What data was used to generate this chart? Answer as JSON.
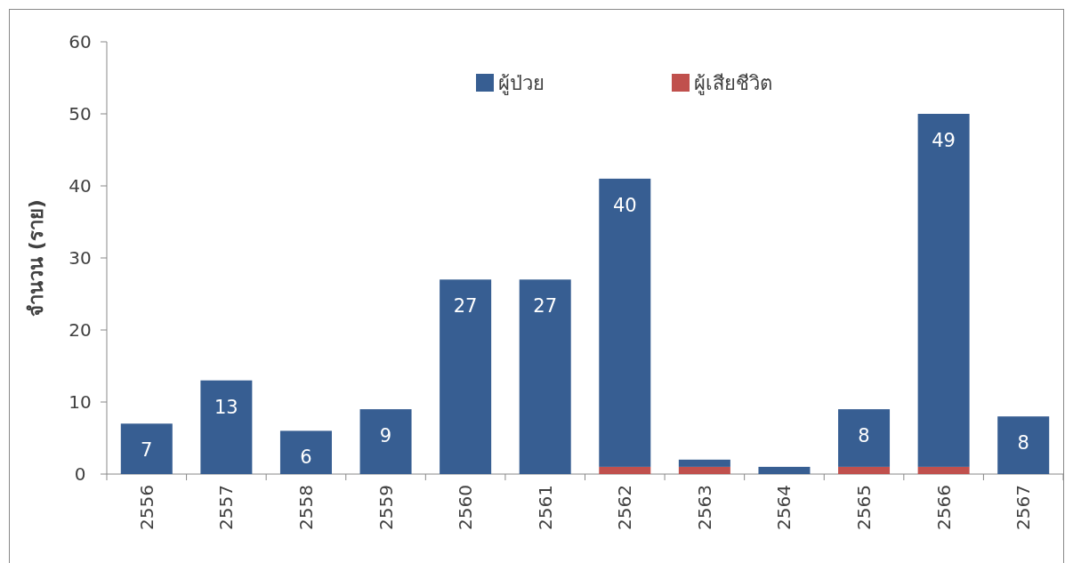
{
  "chart_data": {
    "type": "bar",
    "stacked": true,
    "ylabel": "จำนวน (ราย)",
    "legend": "top",
    "categories": [
      "2556",
      "2557",
      "2558",
      "2559",
      "2560",
      "2561",
      "2562",
      "2563",
      "2564",
      "2565",
      "2566",
      "2567"
    ],
    "series": [
      {
        "name": "ผู้เสียชีวิต",
        "color": "#c0504d",
        "values": [
          0,
          0,
          0,
          0,
          0,
          0,
          1,
          1,
          0,
          1,
          1,
          0
        ]
      },
      {
        "name": "ผู้ป่วย",
        "color": "#375e92",
        "values": [
          7,
          13,
          6,
          9,
          27,
          27,
          40,
          1,
          1,
          8,
          49,
          8
        ],
        "value_labels": [
          "7",
          "13",
          "6",
          "9",
          "27",
          "27",
          "40",
          null,
          null,
          "8",
          "49",
          "8"
        ]
      }
    ],
    "ylim": [
      0,
      60
    ],
    "yticks": [
      0,
      10,
      20,
      30,
      40,
      50,
      60
    ]
  }
}
